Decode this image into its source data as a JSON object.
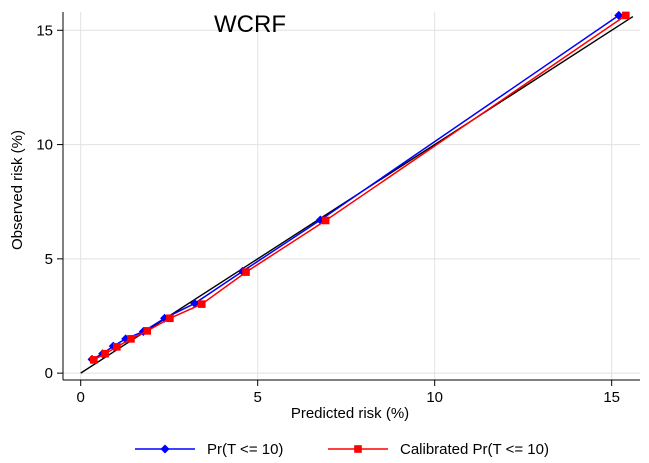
{
  "chart_data": {
    "type": "line",
    "title": "WCRF",
    "xlabel": "Predicted risk (%)",
    "ylabel": "Observed risk (%)",
    "xlim": [
      -0.5,
      15.8
    ],
    "ylim": [
      -0.3,
      15.8
    ],
    "x_ticks": [
      0,
      5,
      10,
      15
    ],
    "y_ticks": [
      0,
      5,
      10,
      15
    ],
    "x_tick_labels": [
      "0",
      "5",
      "10",
      "15"
    ],
    "y_tick_labels": [
      "0",
      "5",
      "10",
      "15"
    ],
    "grid": true,
    "legend_position": "bottom",
    "reference_line": {
      "x": [
        0,
        15.6
      ],
      "y": [
        0,
        15.6
      ],
      "color": "#000000"
    },
    "series": [
      {
        "name": "Pr(T <= 10)",
        "color": "#0000ff",
        "marker": "diamond",
        "x": [
          0.32,
          0.62,
          0.92,
          1.27,
          1.77,
          2.37,
          3.22,
          4.57,
          6.77,
          15.2
        ],
        "y": [
          0.6,
          0.85,
          1.18,
          1.5,
          1.82,
          2.4,
          3.05,
          4.45,
          6.7,
          15.65
        ]
      },
      {
        "name": "Calibrated Pr(T <= 10)",
        "color": "#ff0000",
        "marker": "square",
        "x": [
          0.37,
          0.69,
          1.02,
          1.42,
          1.88,
          2.52,
          3.42,
          4.67,
          6.92,
          15.4
        ],
        "y": [
          0.58,
          0.85,
          1.15,
          1.5,
          1.85,
          2.4,
          3.02,
          4.42,
          6.68,
          15.65
        ]
      }
    ]
  }
}
